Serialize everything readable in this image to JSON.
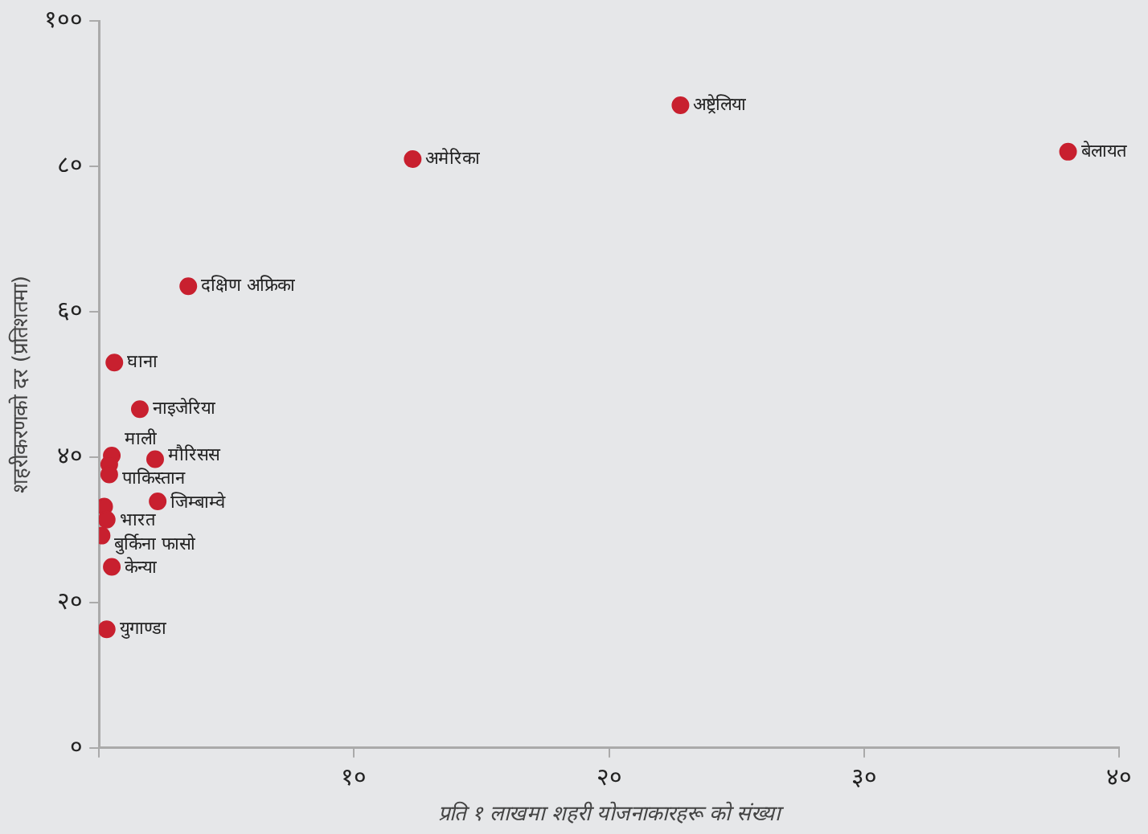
{
  "chart_data": {
    "type": "scatter",
    "xlabel": "प्रति १ लाखमा शहरी योजनाकारहरू को संख्या",
    "ylabel": "शहरीकरणको दर (प्रतिशतमा)",
    "xlim": [
      0,
      40
    ],
    "ylim": [
      0,
      100
    ],
    "xticks": [
      {
        "value": 0,
        "label": null
      },
      {
        "value": 10,
        "label": "१०"
      },
      {
        "value": 20,
        "label": "२०"
      },
      {
        "value": 30,
        "label": "३०"
      },
      {
        "value": 40,
        "label": "४०"
      }
    ],
    "yticks": [
      {
        "value": 0,
        "label": "०"
      },
      {
        "value": 20,
        "label": "२०"
      },
      {
        "value": 40,
        "label": "४०"
      },
      {
        "value": 60,
        "label": "६०"
      },
      {
        "value": 80,
        "label": "८०"
      },
      {
        "value": 100,
        "label": "१००"
      }
    ],
    "grid": false,
    "legend": false,
    "marker": "circle",
    "series": [
      {
        "color": "#c8202f",
        "x": [
          22.8,
          38,
          12.3,
          3.5,
          0.6,
          1.6,
          0.5,
          0.4,
          0.4,
          2.2,
          2.3,
          0.2,
          0.3,
          0.1,
          0.5,
          0.3
        ],
        "values": [
          88.4,
          82,
          81,
          63.5,
          53,
          46.6,
          40.2,
          39,
          37.6,
          39.7,
          33.9,
          33.2,
          31.4,
          29.2,
          24.9,
          16.3
        ]
      }
    ],
    "annotations": [
      {
        "text": "अष्ट्रेलिया",
        "x": 22.8,
        "y": 88.4
      },
      {
        "text": "बेलायत",
        "x": 38,
        "y": 82
      },
      {
        "text": "अमेरिका",
        "x": 12.3,
        "y": 81
      },
      {
        "text": "दक्षिण अफ्रिका",
        "x": 3.5,
        "y": 63.5
      },
      {
        "text": "घाना",
        "x": 0.6,
        "y": 53
      },
      {
        "text": "नाइजेरिया",
        "x": 1.6,
        "y": 46.6
      },
      {
        "text": "माली",
        "x": 0.5,
        "y": 40.2
      },
      {
        "text": "पाकिस्तान",
        "x": 0.4,
        "y": 37.6
      },
      {
        "text": "मौरिसस",
        "x": 2.2,
        "y": 39.7
      },
      {
        "text": "जिम्बाम्वे",
        "x": 2.3,
        "y": 33.9
      },
      {
        "text": "भारत",
        "x": 0.3,
        "y": 31.4
      },
      {
        "text": "बुर्किना फासो",
        "x": 0.1,
        "y": 29.2
      },
      {
        "text": "केन्या",
        "x": 0.5,
        "y": 24.9
      },
      {
        "text": "युगाण्डा",
        "x": 0.3,
        "y": 16.3
      }
    ]
  }
}
